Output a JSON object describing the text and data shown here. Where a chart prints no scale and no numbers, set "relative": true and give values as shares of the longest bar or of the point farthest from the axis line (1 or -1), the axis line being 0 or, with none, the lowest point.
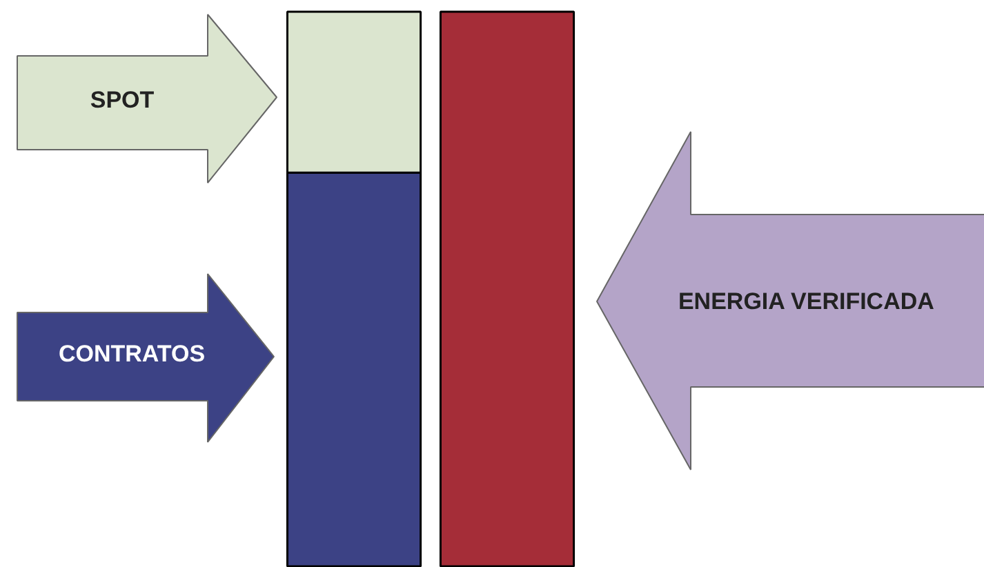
{
  "chart_data": {
    "type": "bar",
    "relative": true,
    "stacked": true,
    "categories": [
      null,
      null
    ],
    "series": [
      {
        "color": "#3c4285",
        "values": [
          0.71,
          null
        ]
      },
      {
        "color": "#dbe5cf",
        "values": [
          0.29,
          null
        ]
      },
      {
        "color": "#a52d38",
        "values": [
          null,
          1
        ]
      }
    ],
    "annotations": [
      "SPOT",
      "CONTRATOS",
      "ENERGIA VERIFICADA"
    ],
    "grid": false
  }
}
